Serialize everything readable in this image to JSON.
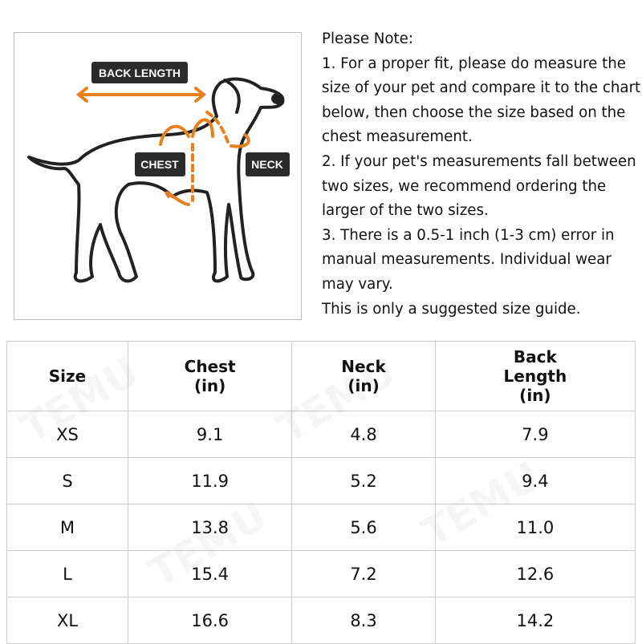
{
  "diagram": {
    "labels": {
      "back_length": "BACK LENGTH",
      "chest": "CHEST",
      "neck": "NECK"
    },
    "accent_color": "#E8801E",
    "label_bg": "#2b2b2b"
  },
  "note": {
    "lines": [
      "Please Note:",
      "1. For a proper fit, please do measure the",
      "size of your pet and compare it to the chart",
      "below, then choose the size based on the",
      "chest measurement.",
      "2. If your pet's measurements fall between",
      "two sizes, we recommend ordering the",
      "larger of the two sizes.",
      "3. There is a 0.5-1 inch (1-3 cm) error in",
      "manual measurements. Individual wear",
      "may vary.",
      "This is only a suggested size guide."
    ]
  },
  "table": {
    "headers": [
      {
        "l1": "Size",
        "l2": "",
        "l3": ""
      },
      {
        "l1": "Chest",
        "l2": "(in)",
        "l3": ""
      },
      {
        "l1": "Neck",
        "l2": "(in)",
        "l3": ""
      },
      {
        "l1": "Back",
        "l2": "Length",
        "l3": "(in)"
      }
    ],
    "rows": [
      [
        "XS",
        "9.1",
        "4.8",
        "7.9"
      ],
      [
        "S",
        "11.9",
        "5.2",
        "9.4"
      ],
      [
        "M",
        "13.8",
        "5.6",
        "11.0"
      ],
      [
        "L",
        "15.4",
        "7.2",
        "12.6"
      ],
      [
        "XL",
        "16.6",
        "8.3",
        "14.2"
      ]
    ]
  },
  "watermark": "TEMU"
}
